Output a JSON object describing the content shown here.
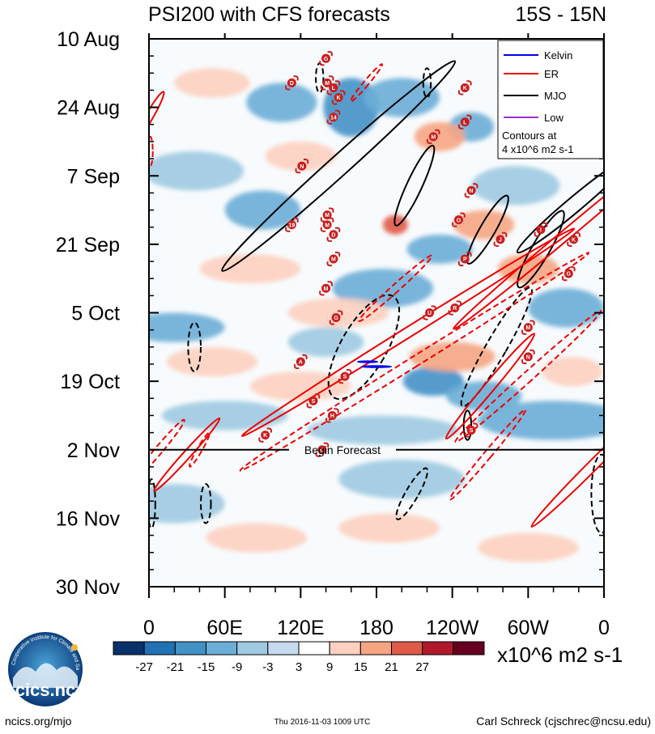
{
  "chart_data": {
    "type": "heatmap",
    "title": "PSI200 with CFS forecasts",
    "latitude_band": "15S - 15N",
    "x_tick_labels": [
      "0",
      "60E",
      "120E",
      "180",
      "120W",
      "60W",
      "0"
    ],
    "x_range_deg_east": [
      0,
      360
    ],
    "y_tick_labels": [
      "10 Aug",
      "24 Aug",
      "7 Sep",
      "21 Sep",
      "5 Oct",
      "19 Oct",
      "2 Nov",
      "16 Nov",
      "30 Nov"
    ],
    "y_range_days_from_10_Aug": [
      0,
      112
    ],
    "forecast_start_day": 84,
    "forecast_label": "Begin Forecast",
    "colorbar": {
      "unit_label": "x10^6 m2 s-1",
      "levels": [
        "-27",
        "-21",
        "-15",
        "-9",
        "-3",
        "3",
        "9",
        "15",
        "21",
        "27"
      ],
      "colors": [
        "#08306b",
        "#2171b5",
        "#4292c6",
        "#6baed6",
        "#9ecae1",
        "#c6dbef",
        "#ffffff",
        "#fdd0c0",
        "#f6a582",
        "#e05a48",
        "#b2182b",
        "#67001f"
      ]
    },
    "legend": {
      "position": "top-right",
      "entries": [
        {
          "label": "Kelvin",
          "color": "#0000ee"
        },
        {
          "label": "ER",
          "color": "#ee0000"
        },
        {
          "label": "MJO",
          "color": "#000000"
        },
        {
          "label": "Low",
          "color": "#9932cc"
        }
      ],
      "note_line1": "Contours at",
      "note_line2": "4 x10^6 m2 s-1"
    },
    "anomaly_patches": [
      {
        "lon": 105,
        "day": 13,
        "w": 28,
        "h": 4,
        "lvl": -2
      },
      {
        "lon": 160,
        "day": 14,
        "w": 22,
        "h": 6,
        "lvl": -3
      },
      {
        "lon": 200,
        "day": 12,
        "w": 30,
        "h": 4,
        "lvl": -2
      },
      {
        "lon": 255,
        "day": 18,
        "w": 18,
        "h": 3,
        "lvl": -2
      },
      {
        "lon": 35,
        "day": 27,
        "w": 40,
        "h": 4,
        "lvl": -1
      },
      {
        "lon": 90,
        "day": 35,
        "w": 30,
        "h": 4,
        "lvl": -2
      },
      {
        "lon": 230,
        "day": 43,
        "w": 26,
        "h": 3,
        "lvl": -2
      },
      {
        "lon": 290,
        "day": 30,
        "w": 35,
        "h": 4,
        "lvl": -1
      },
      {
        "lon": 185,
        "day": 51,
        "w": 40,
        "h": 4,
        "lvl": -2
      },
      {
        "lon": 330,
        "day": 55,
        "w": 30,
        "h": 4,
        "lvl": -2
      },
      {
        "lon": 20,
        "day": 59,
        "w": 40,
        "h": 3,
        "lvl": -2
      },
      {
        "lon": 140,
        "day": 62,
        "w": 30,
        "h": 3,
        "lvl": -1
      },
      {
        "lon": 225,
        "day": 70,
        "w": 24,
        "h": 3,
        "lvl": -3
      },
      {
        "lon": 265,
        "day": 73,
        "w": 30,
        "h": 3,
        "lvl": -2
      },
      {
        "lon": 60,
        "day": 77,
        "w": 50,
        "h": 3,
        "lvl": -1
      },
      {
        "lon": 185,
        "day": 80,
        "w": 60,
        "h": 3,
        "lvl": -1
      },
      {
        "lon": 320,
        "day": 78,
        "w": 60,
        "h": 4,
        "lvl": -2
      },
      {
        "lon": 200,
        "day": 90,
        "w": 50,
        "h": 4,
        "lvl": -1
      },
      {
        "lon": 20,
        "day": 95,
        "w": 40,
        "h": 4,
        "lvl": -1
      },
      {
        "lon": 120,
        "day": 24,
        "w": 28,
        "h": 3,
        "lvl": 1
      },
      {
        "lon": 230,
        "day": 20,
        "w": 20,
        "h": 3,
        "lvl": 2
      },
      {
        "lon": 265,
        "day": 38,
        "w": 24,
        "h": 3,
        "lvl": 2
      },
      {
        "lon": 195,
        "day": 38,
        "w": 10,
        "h": 2,
        "lvl": 3
      },
      {
        "lon": 80,
        "day": 47,
        "w": 40,
        "h": 3,
        "lvl": 1
      },
      {
        "lon": 300,
        "day": 47,
        "w": 24,
        "h": 3,
        "lvl": 2
      },
      {
        "lon": 150,
        "day": 56,
        "w": 40,
        "h": 3,
        "lvl": 1
      },
      {
        "lon": 50,
        "day": 66,
        "w": 36,
        "h": 3,
        "lvl": 1
      },
      {
        "lon": 240,
        "day": 65,
        "w": 34,
        "h": 3,
        "lvl": 2
      },
      {
        "lon": 335,
        "day": 68,
        "w": 24,
        "h": 3,
        "lvl": 1
      },
      {
        "lon": 120,
        "day": 71,
        "w": 40,
        "h": 3,
        "lvl": 1
      },
      {
        "lon": 50,
        "day": 9,
        "w": 30,
        "h": 3,
        "lvl": 1
      },
      {
        "lon": 85,
        "day": 102,
        "w": 40,
        "h": 3,
        "lvl": 1
      },
      {
        "lon": 190,
        "day": 100,
        "w": 40,
        "h": 3,
        "lvl": 1
      },
      {
        "lon": 300,
        "day": 104,
        "w": 40,
        "h": 3,
        "lvl": 1
      }
    ],
    "contours": [
      {
        "system": "MJO",
        "style": "solid",
        "lon": 150,
        "day": 26,
        "rx": 8,
        "ry": 32,
        "rot": 48
      },
      {
        "system": "MJO",
        "style": "solid",
        "lon": 210,
        "day": 30,
        "rx": 6,
        "ry": 9,
        "rot": 25
      },
      {
        "system": "MJO",
        "style": "solid",
        "lon": 268,
        "day": 39,
        "rx": 6,
        "ry": 8,
        "rot": 30
      },
      {
        "system": "MJO",
        "style": "solid",
        "lon": 310,
        "day": 43,
        "rx": 7,
        "ry": 9,
        "rot": 30
      },
      {
        "system": "MJO",
        "style": "solid",
        "lon": 336,
        "day": 34,
        "rx": 6,
        "ry": 15,
        "rot": 50
      },
      {
        "system": "MJO",
        "style": "dashed",
        "lon": 170,
        "day": 63,
        "rx": 18,
        "ry": 12,
        "rot": 30
      },
      {
        "system": "MJO",
        "style": "dashed",
        "lon": 275,
        "day": 63,
        "rx": 8,
        "ry": 14,
        "rot": 30
      },
      {
        "system": "MJO",
        "style": "dashed",
        "lon": 36,
        "day": 63,
        "rx": 5,
        "ry": 5,
        "rot": 0
      },
      {
        "system": "MJO",
        "style": "dashed",
        "lon": 220,
        "day": 9,
        "rx": 3,
        "ry": 3,
        "rot": 0
      },
      {
        "system": "MJO",
        "style": "dashed",
        "lon": 135,
        "day": 8,
        "rx": 3,
        "ry": 3,
        "rot": 0
      },
      {
        "system": "MJO",
        "style": "dashed",
        "lon": 208,
        "day": 93,
        "rx": 5,
        "ry": 6,
        "rot": 30
      },
      {
        "system": "MJO",
        "style": "dashed",
        "lon": 45,
        "day": 95,
        "rx": 4,
        "ry": 4,
        "rot": 0
      },
      {
        "system": "MJO",
        "style": "dashed",
        "lon": 358,
        "day": 93,
        "rx": 8,
        "ry": 8,
        "rot": 0
      },
      {
        "system": "MJO",
        "style": "dashed",
        "lon": 2,
        "day": 95,
        "rx": 3,
        "ry": 5,
        "rot": 0
      },
      {
        "system": "MJO",
        "style": "solid",
        "lon": 252,
        "day": 79,
        "rx": 3,
        "ry": 3,
        "rot": 0
      },
      {
        "system": "ER",
        "style": "solid",
        "lon": 205,
        "day": 60,
        "rx": 4,
        "ry": 40,
        "rot": 58
      },
      {
        "system": "ER",
        "style": "solid",
        "lon": 270,
        "day": 71,
        "rx": 4,
        "ry": 14,
        "rot": 40
      },
      {
        "system": "ER",
        "style": "solid",
        "lon": 330,
        "day": 40,
        "rx": 4,
        "ry": 30,
        "rot": 50
      },
      {
        "system": "ER",
        "style": "solid",
        "lon": 352,
        "day": 87,
        "rx": 4,
        "ry": 18,
        "rot": 45
      },
      {
        "system": "ER",
        "style": "solid",
        "lon": 30,
        "day": 85,
        "rx": 3,
        "ry": 10,
        "rot": 42
      },
      {
        "system": "ER",
        "style": "solid",
        "lon": 0,
        "day": 16,
        "rx": 3,
        "ry": 6,
        "rot": 30
      },
      {
        "system": "ER",
        "style": "dashed",
        "lon": 210,
        "day": 66,
        "rx": 4,
        "ry": 42,
        "rot": 58
      },
      {
        "system": "ER",
        "style": "dashed",
        "lon": 300,
        "day": 69,
        "rx": 4,
        "ry": 20,
        "rot": 48
      },
      {
        "system": "ER",
        "style": "dashed",
        "lon": 195,
        "day": 51,
        "rx": 3,
        "ry": 10,
        "rot": 48
      },
      {
        "system": "ER",
        "style": "dashed",
        "lon": 268,
        "day": 85,
        "rx": 3,
        "ry": 12,
        "rot": 40
      },
      {
        "system": "ER",
        "style": "dashed",
        "lon": 172,
        "day": 9,
        "rx": 2,
        "ry": 5,
        "rot": 40
      },
      {
        "system": "ER",
        "style": "dashed",
        "lon": 8,
        "day": 84,
        "rx": 3,
        "ry": 8,
        "rot": 40
      },
      {
        "system": "ER",
        "style": "dashed",
        "lon": 40,
        "day": 84,
        "rx": 2,
        "ry": 4,
        "rot": 30
      },
      {
        "system": "ER",
        "style": "dashed",
        "lon": 1,
        "day": 23,
        "rx": 2,
        "ry": 3,
        "rot": 0
      },
      {
        "system": "Kelvin",
        "style": "solid",
        "lon": 180,
        "day": 67,
        "rx": 0.5,
        "ry": 3,
        "rot": 90
      },
      {
        "system": "Kelvin",
        "style": "solid",
        "lon": 173,
        "day": 66,
        "rx": 0.4,
        "ry": 2,
        "rot": 90
      }
    ],
    "storms": [
      {
        "label": "G",
        "lon": 140,
        "day": 4
      },
      {
        "label": "D",
        "lon": 113,
        "day": 9
      },
      {
        "label": "M",
        "lon": 141,
        "day": 9
      },
      {
        "label": "L",
        "lon": 146,
        "day": 10
      },
      {
        "label": "K",
        "lon": 150,
        "day": 12
      },
      {
        "label": "14",
        "lon": 146,
        "day": 16
      },
      {
        "label": "N",
        "lon": 121,
        "day": 26
      },
      {
        "label": "19",
        "lon": 113,
        "day": 38
      },
      {
        "label": "M",
        "lon": 141,
        "day": 36
      },
      {
        "label": "M",
        "lon": 141,
        "day": 38
      },
      {
        "label": "D",
        "lon": 146,
        "day": 40
      },
      {
        "label": "M",
        "lon": 146,
        "day": 45
      },
      {
        "label": "K",
        "lon": 250,
        "day": 10
      },
      {
        "label": "M",
        "lon": 225,
        "day": 20
      },
      {
        "label": "L",
        "lon": 250,
        "day": 17
      },
      {
        "label": "N",
        "lon": 255,
        "day": 31
      },
      {
        "label": "O",
        "lon": 245,
        "day": 37
      },
      {
        "label": "J",
        "lon": 278,
        "day": 41
      },
      {
        "label": "I",
        "lon": 310,
        "day": 39
      },
      {
        "label": "K",
        "lon": 336,
        "day": 41
      },
      {
        "label": "G",
        "lon": 332,
        "day": 48
      },
      {
        "label": "P",
        "lon": 250,
        "day": 45
      },
      {
        "label": "M",
        "lon": 140,
        "day": 51
      },
      {
        "label": "U",
        "lon": 222,
        "day": 56
      },
      {
        "label": "R",
        "lon": 242,
        "day": 55
      },
      {
        "label": "G",
        "lon": 148,
        "day": 57
      },
      {
        "label": "M",
        "lon": 300,
        "day": 59
      },
      {
        "label": "N",
        "lon": 300,
        "day": 65
      },
      {
        "label": "A",
        "lon": 120,
        "day": 66
      },
      {
        "label": "S",
        "lon": 155,
        "day": 69
      },
      {
        "label": "S",
        "lon": 130,
        "day": 74
      },
      {
        "label": "H",
        "lon": 145,
        "day": 77
      },
      {
        "label": "S",
        "lon": 255,
        "day": 80
      },
      {
        "label": "K",
        "lon": 92,
        "day": 81
      },
      {
        "label": "C",
        "lon": 137,
        "day": 84
      }
    ]
  },
  "footer": {
    "website": "ncics.org/mjo",
    "timestamp": "Thu 2016-11-03 1009 UTC",
    "author": "Carl Schreck (cjschrec@ncsu.edu)",
    "logo_text": "cics.nc",
    "logo_ring_text": "Cooperative Institute for Climate and Satellites"
  }
}
